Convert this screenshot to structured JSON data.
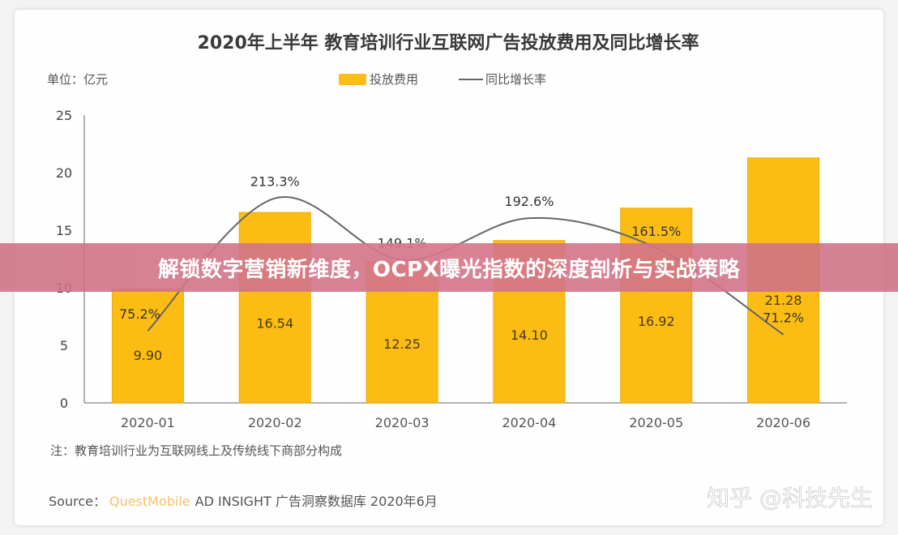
{
  "chart_data": {
    "type": "bar+line",
    "title": "2020年上半年 教育培训行业互联网广告投放费用及同比增长率",
    "unit_label": "单位：亿元",
    "categories": [
      "2020-01",
      "2020-02",
      "2020-03",
      "2020-04",
      "2020-05",
      "2020-06"
    ],
    "series": [
      {
        "name": "投放费用",
        "kind": "bar",
        "values": [
          9.9,
          16.54,
          12.25,
          14.1,
          16.92,
          21.28
        ],
        "labels": [
          "9.90",
          "16.54",
          "12.25",
          "14.10",
          "16.92",
          "21.28"
        ]
      },
      {
        "name": "同比增长率",
        "kind": "line",
        "values": [
          75.2,
          213.3,
          149.1,
          192.6,
          161.5,
          71.2
        ],
        "labels": [
          "75.2%",
          "213.3%",
          "149.1%",
          "192.6%",
          "161.5%",
          "71.2%"
        ]
      }
    ],
    "y_ticks": [
      "0",
      "5",
      "10",
      "15",
      "20",
      "25"
    ],
    "ylim": [
      0,
      25
    ],
    "y2lim": [
      0,
      300
    ],
    "legend_position": "top",
    "grid": false,
    "note": "注：教育培训行业为互联网线上及传统线下商部分构成",
    "source_prefix": "Source：",
    "source_brand": "QuestMobile",
    "source_rest": "AD INSIGHT 广告洞察数据库 2020年6月"
  },
  "colors": {
    "bar": "#fbbd13",
    "bar_edge": "#f0a800",
    "line": "#666666",
    "banner": "#d27488"
  },
  "watermark": "知乎 @科技先生",
  "banner": {
    "text": "解锁数字营销新维度，OCPX曝光指数的深度剖析与实战策略"
  }
}
